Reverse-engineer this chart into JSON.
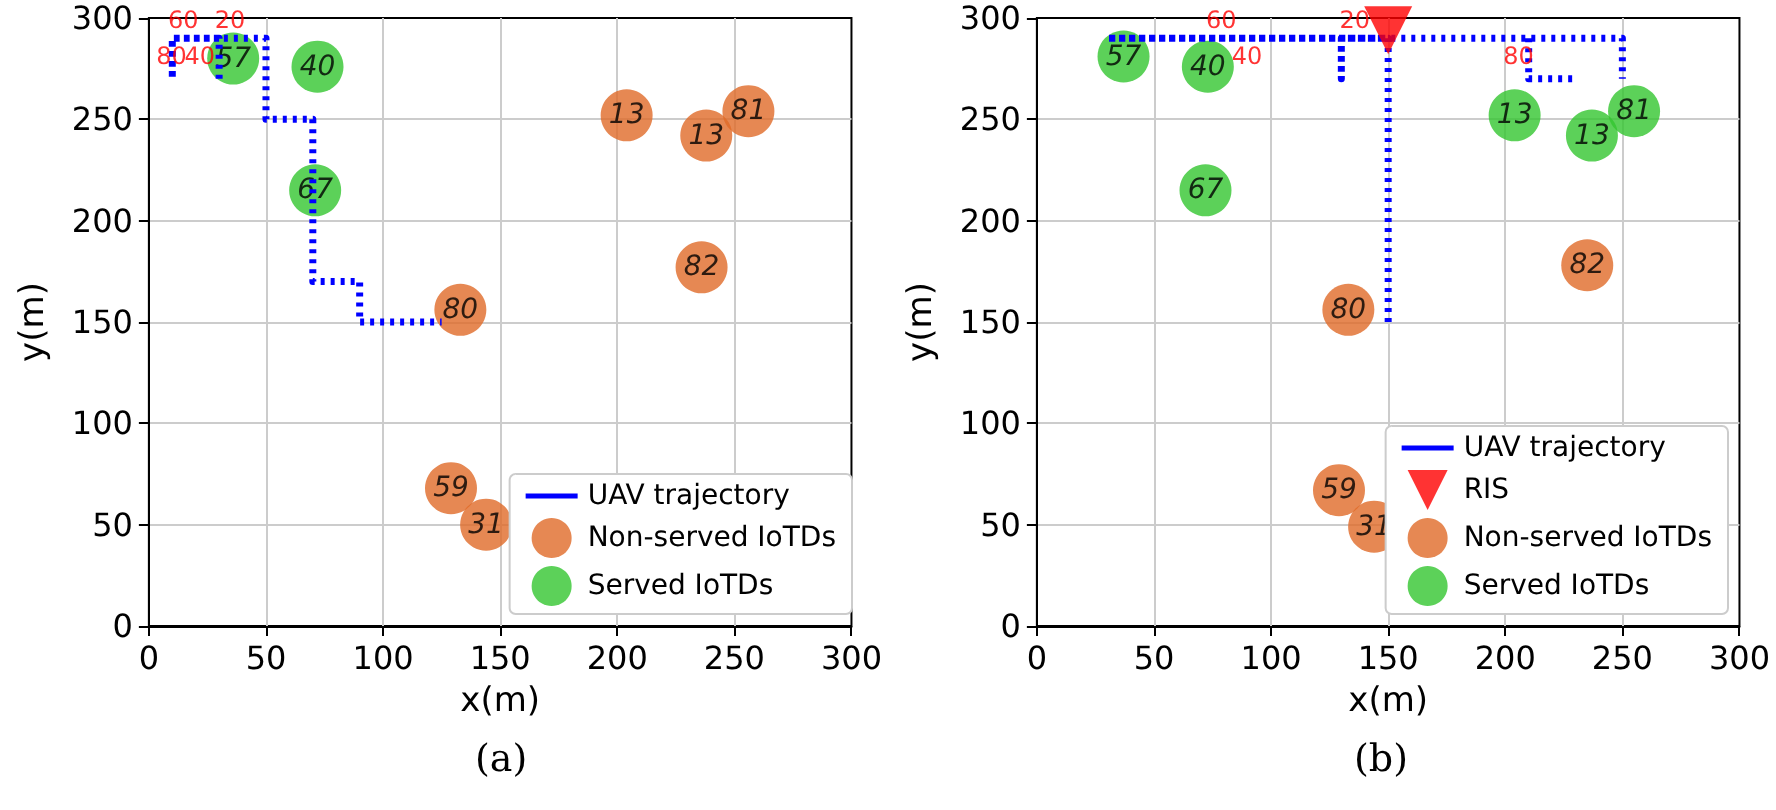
{
  "chart_data": [
    {
      "type": "scatter",
      "xlabel": "x(m)",
      "ylabel": "y(m)",
      "xlim": [
        0,
        300
      ],
      "ylim": [
        0,
        300
      ],
      "xticks": [
        0,
        50,
        100,
        150,
        200,
        250,
        300
      ],
      "yticks": [
        0,
        50,
        100,
        150,
        200,
        250,
        300
      ],
      "grid": true,
      "legend": "bottom right",
      "series": [
        {
          "name": "UAV trajectory",
          "type": "line",
          "color": "#0000ff",
          "line_style": "dotted",
          "marker": "none",
          "x": [
            30,
            30,
            10,
            10,
            10,
            50,
            50,
            70,
            70,
            90,
            90,
            125
          ],
          "values": [
            270,
            290,
            290,
            270,
            290,
            290,
            250,
            250,
            170,
            170,
            150,
            150
          ]
        },
        {
          "name": "Non-served IoTDs",
          "color": "#e06a28",
          "marker": "circle",
          "x": [
            204,
            238,
            256,
            236,
            133,
            129,
            144
          ],
          "values": [
            252,
            242,
            254,
            177,
            156,
            68,
            50
          ]
        },
        {
          "name": "Served IoTDs",
          "color": "#33c52f",
          "marker": "circle",
          "x": [
            36,
            72,
            71
          ],
          "values": [
            280,
            276,
            215
          ]
        }
      ],
      "annotations": [
        {
          "text": "60",
          "x": 15,
          "y": 290
        },
        {
          "text": "80",
          "x": 10,
          "y": 290
        },
        {
          "text": "20",
          "x": 35,
          "y": 290
        },
        {
          "text": "40",
          "x": 22,
          "y": 290
        },
        {
          "text": "13",
          "x": 204,
          "y": 252
        },
        {
          "text": "13",
          "x": 238,
          "y": 242
        },
        {
          "text": "81",
          "x": 256,
          "y": 254
        },
        {
          "text": "82",
          "x": 236,
          "y": 177
        },
        {
          "text": "80",
          "x": 133,
          "y": 156
        },
        {
          "text": "59",
          "x": 129,
          "y": 68
        },
        {
          "text": "31",
          "x": 144,
          "y": 50
        },
        {
          "text": "57",
          "x": 36,
          "y": 280
        },
        {
          "text": "40",
          "x": 72,
          "y": 276
        },
        {
          "text": "67",
          "x": 71,
          "y": 215
        },
        "(a)"
      ]
    },
    {
      "type": "scatter",
      "xlabel": "x(m)",
      "ylabel": "y(m)",
      "xlim": [
        0,
        300
      ],
      "ylim": [
        0,
        300
      ],
      "xticks": [
        0,
        50,
        100,
        150,
        200,
        250,
        300
      ],
      "yticks": [
        0,
        50,
        100,
        150,
        200,
        250,
        300
      ],
      "grid": true,
      "legend": "bottom right",
      "series": [
        {
          "name": "UAV trajectory",
          "type": "line",
          "color": "#0000ff",
          "line_style": "dotted",
          "marker": "none",
          "x": [
            150,
            150,
            130,
            130,
            130,
            30,
            250,
            250,
            null,
            210,
            210,
            230
          ],
          "values": [
            150,
            290,
            290,
            270,
            290,
            290,
            290,
            270,
            null,
            290,
            270,
            270
          ]
        },
        {
          "name": "RIS",
          "color": "#ff0000",
          "marker": "triangle",
          "x": [
            150
          ],
          "values": [
            294
          ]
        },
        {
          "name": "Non-served IoTDs",
          "color": "#e06a28",
          "marker": "circle",
          "x": [
            235,
            133,
            129,
            144
          ],
          "values": [
            178,
            156,
            67,
            49
          ]
        },
        {
          "name": "Served IoTDs",
          "color": "#33c52f",
          "marker": "circle",
          "x": [
            37,
            73,
            72,
            204,
            237,
            255
          ],
          "values": [
            281,
            276,
            215,
            252,
            242,
            254
          ]
        }
      ],
      "annotations": [
        {
          "text": "60",
          "x": 79,
          "y": 290
        },
        {
          "text": "40",
          "x": 90,
          "y": 290
        },
        {
          "text": "20",
          "x": 136,
          "y": 290
        },
        {
          "text": "80",
          "x": 206,
          "y": 290
        },
        {
          "text": "82",
          "x": 235,
          "y": 178
        },
        {
          "text": "80",
          "x": 133,
          "y": 156
        },
        {
          "text": "59",
          "x": 129,
          "y": 67
        },
        {
          "text": "31",
          "x": 144,
          "y": 49
        },
        {
          "text": "57",
          "x": 37,
          "y": 281
        },
        {
          "text": "40",
          "x": 73,
          "y": 276
        },
        {
          "text": "67",
          "x": 72,
          "y": 215
        },
        {
          "text": "13",
          "x": 204,
          "y": 252
        },
        {
          "text": "13",
          "x": 237,
          "y": 242
        },
        {
          "text": "81",
          "x": 255,
          "y": 254
        },
        "(b)"
      ]
    }
  ]
}
